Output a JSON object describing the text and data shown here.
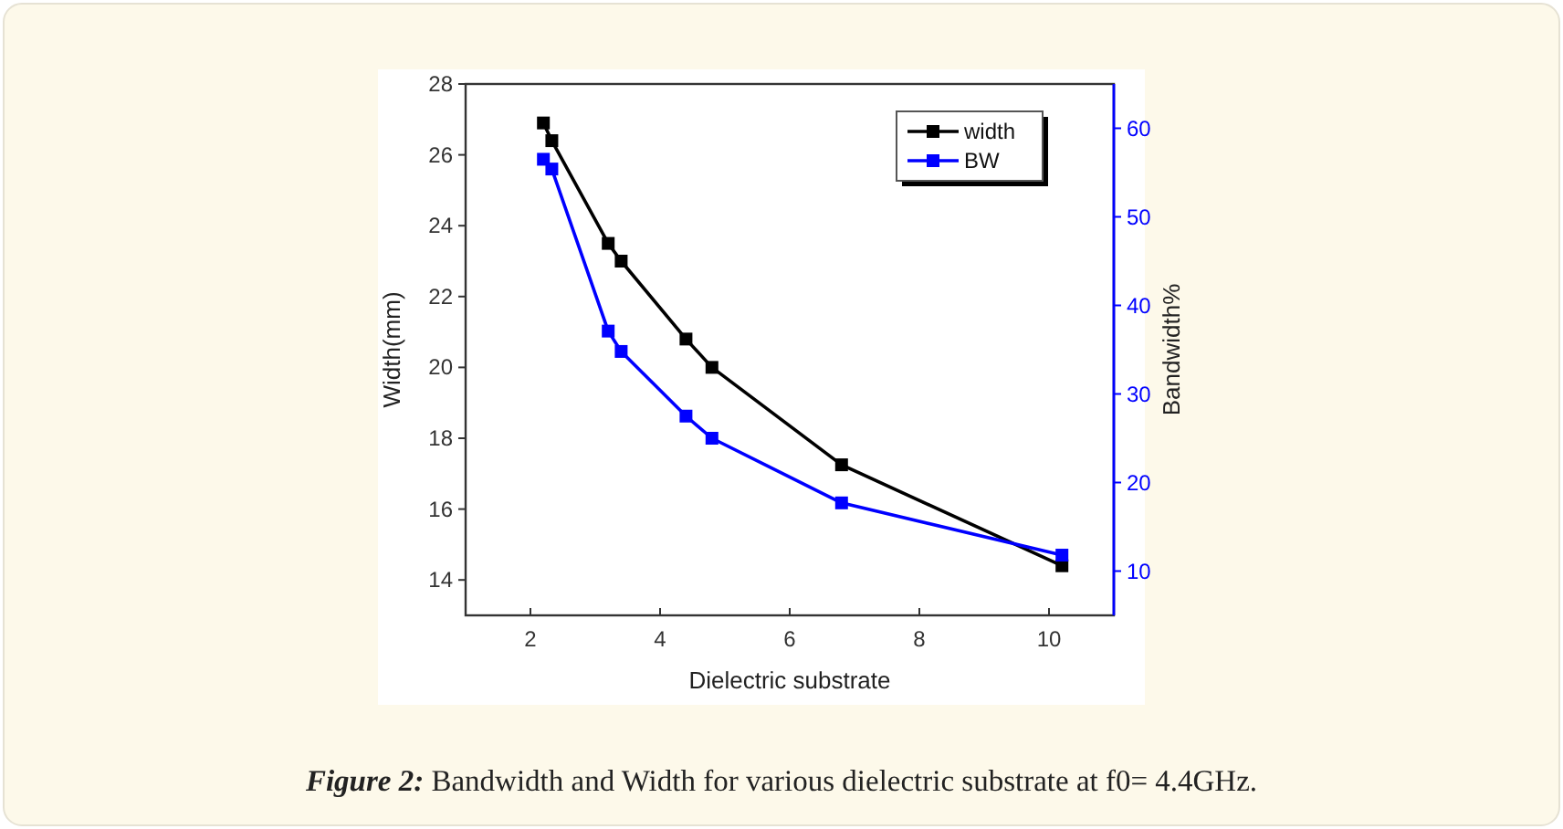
{
  "chart_data": {
    "type": "line",
    "xlabel": "Dielectric substrate",
    "ylabel": "Width(mm)",
    "y2label": "Bandwidth%",
    "x": [
      2.2,
      2.33,
      3.2,
      3.4,
      4.4,
      4.8,
      6.8,
      10.2
    ],
    "series": [
      {
        "name": "width",
        "color": "#000000",
        "values": [
          26.9,
          26.4,
          23.5,
          23.0,
          20.8,
          20.0,
          17.25,
          14.4
        ]
      },
      {
        "name": "BW",
        "color": "#0000ff",
        "axis": "y2",
        "values": [
          56.5,
          55.4,
          37.1,
          34.8,
          27.5,
          25.0,
          17.7,
          11.8
        ]
      }
    ],
    "xlim": [
      1,
      11
    ],
    "xticks": [
      2,
      4,
      6,
      8,
      10
    ],
    "ylim": [
      13,
      28
    ],
    "yticks": [
      14,
      16,
      18,
      20,
      22,
      24,
      26,
      28
    ],
    "y2lim": [
      5,
      65
    ],
    "y2ticks": [
      10,
      20,
      30,
      40,
      50,
      60
    ],
    "marker": "square",
    "line_style": "solid",
    "legend": "top right",
    "grid": false,
    "annotations": [
      "Figure 2: Bandwidth and Width for various dielectric substrate at f0= 4.4GHz."
    ]
  }
}
